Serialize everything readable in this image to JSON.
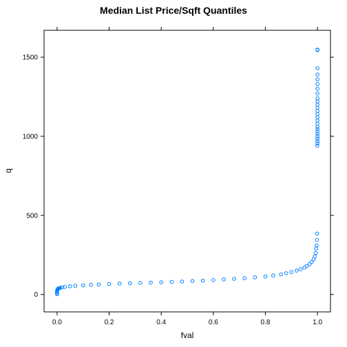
{
  "chart_data": {
    "type": "scatter",
    "title": "Median List Price/Sqft Quantiles",
    "xlabel": "fval",
    "ylabel": "q",
    "xlim": [
      -0.05,
      1.05
    ],
    "ylim": [
      -110,
      1670
    ],
    "xticks": [
      "0.0",
      "0.2",
      "0.4",
      "0.6",
      "0.8",
      "1.0"
    ],
    "yticks": [
      "0",
      "500",
      "1000",
      "1500"
    ],
    "grid": false,
    "point_color": "#0080ff",
    "series": [
      {
        "x": [
          0.0,
          0.0,
          0.0,
          0.0,
          0.001,
          0.002,
          0.003,
          0.005,
          0.008,
          0.012,
          0.02,
          0.03,
          0.05,
          0.07,
          0.1,
          0.13,
          0.16,
          0.2,
          0.24,
          0.28,
          0.32,
          0.36,
          0.4,
          0.44,
          0.48,
          0.52,
          0.56,
          0.6,
          0.64,
          0.68,
          0.72,
          0.76,
          0.8,
          0.83,
          0.86,
          0.88,
          0.9,
          0.92,
          0.935,
          0.95,
          0.96,
          0.97,
          0.978,
          0.985,
          0.99,
          0.993,
          0.995,
          0.997,
          0.998,
          0.999,
          0.9995,
          1.0,
          1.0,
          1.0,
          1.0,
          1.0,
          1.0,
          1.0,
          1.0,
          1.0,
          1.0,
          1.0,
          1.0,
          1.0,
          1.0,
          1.0,
          1.0,
          1.0,
          1.0,
          1.0,
          1.0,
          1.0,
          1.0,
          1.0,
          1.0,
          1.0
        ],
        "y": [
          2,
          8,
          15,
          22,
          28,
          32,
          36,
          38,
          40,
          42,
          45,
          48,
          52,
          55,
          58,
          61,
          63,
          66,
          69,
          71,
          73,
          75,
          77,
          79,
          82,
          85,
          88,
          91,
          95,
          99,
          103,
          108,
          114,
          120,
          127,
          134,
          142,
          151,
          160,
          170,
          180,
          192,
          205,
          222,
          240,
          262,
          290,
          310,
          345,
          385,
          940,
          955,
          970,
          985,
          1000,
          1015,
          1030,
          1045,
          1060,
          1080,
          1100,
          1120,
          1140,
          1160,
          1180,
          1200,
          1220,
          1240,
          1270,
          1300,
          1330,
          1360,
          1390,
          1430,
          1545,
          1548
        ]
      }
    ]
  }
}
